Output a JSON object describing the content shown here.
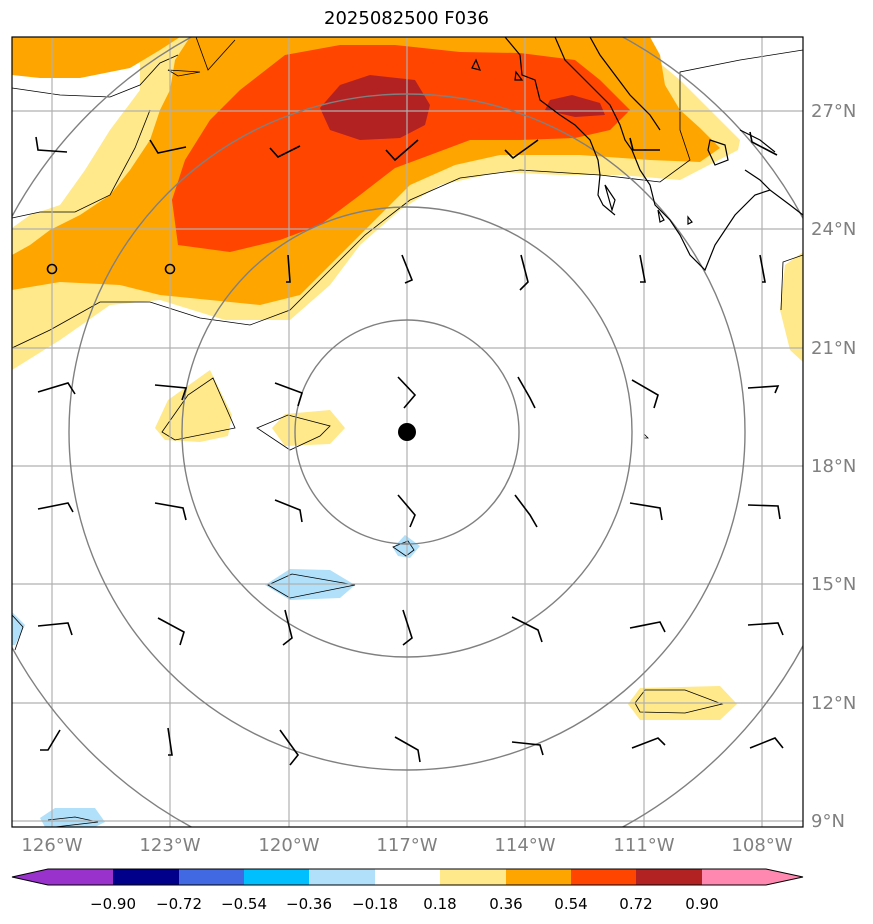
{
  "title": "2025082500 F036",
  "map": {
    "center_marker": {
      "lon": -117.0,
      "lat": 18.9
    },
    "lat_ticks": [
      {
        "value": 27,
        "label": "27°N"
      },
      {
        "value": 24,
        "label": "24°N"
      },
      {
        "value": 21,
        "label": "21°N"
      },
      {
        "value": 18,
        "label": "18°N"
      },
      {
        "value": 15,
        "label": "15°N"
      },
      {
        "value": 12,
        "label": "12°N"
      },
      {
        "value": 9,
        "label": "9°N"
      }
    ],
    "lon_ticks": [
      {
        "value": -126,
        "label": "126°W"
      },
      {
        "value": -123,
        "label": "123°W"
      },
      {
        "value": -120,
        "label": "120°W"
      },
      {
        "value": -117,
        "label": "117°W"
      },
      {
        "value": -114,
        "label": "114°W"
      },
      {
        "value": -111,
        "label": "111°W"
      },
      {
        "value": -108,
        "label": "108°W"
      }
    ],
    "fill_colors": {
      "light_yellow": "#ffe98a",
      "orange": "#ffa500",
      "red_orange": "#ff4500",
      "dark_red": "#b22222",
      "light_blue": "#b0e0fa"
    },
    "grid_color": "#b0b0b0",
    "range_ring_color": "#808080"
  },
  "colorbar": {
    "labels": [
      "−0.90",
      "−0.72",
      "−0.54",
      "−0.36",
      "−0.18",
      "0.18",
      "0.36",
      "0.54",
      "0.72",
      "0.90"
    ],
    "colors": [
      "#9932cc",
      "#00008b",
      "#4169e1",
      "#00bfff",
      "#b0e0fa",
      "#ffffff",
      "#ffe98a",
      "#ffa500",
      "#ff4500",
      "#b22222",
      "#ff88b0"
    ]
  }
}
